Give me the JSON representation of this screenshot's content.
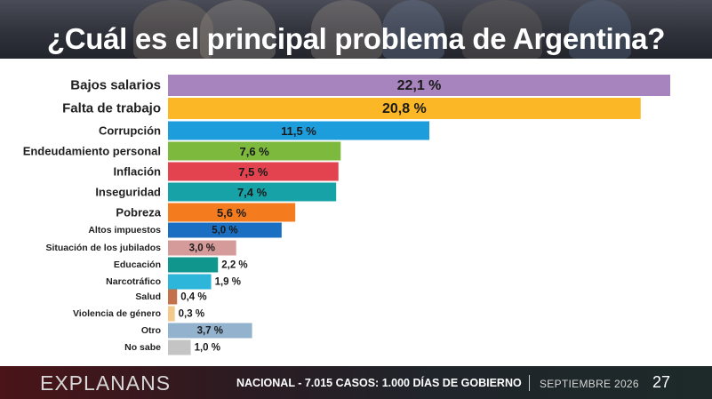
{
  "header": {
    "title": "¿Cuál es el principal problema de Argentina?"
  },
  "footer": {
    "brand": "EXPLANANS",
    "note_prefix": "NACIONAL - 7.015 CASOS: ",
    "note_bold": "1.000 DÍAS DE GOBIERNO",
    "date": "SEPTIEMBRE 2026",
    "page": "27"
  },
  "chart_data": {
    "type": "bar",
    "orientation": "horizontal",
    "categories": [
      "Bajos salarios",
      "Falta de trabajo",
      "Corrupción",
      "Endeudamiento personal",
      "Inflación",
      "Inseguridad",
      "Pobreza",
      "Altos impuestos",
      "Situación de los jubilados",
      "Educación",
      "Narcotráfico",
      "Salud",
      "Violencia de género",
      "Otro",
      "No sabe"
    ],
    "values": [
      22.1,
      20.8,
      11.5,
      7.6,
      7.5,
      7.4,
      5.6,
      5.0,
      3.0,
      2.2,
      1.9,
      0.4,
      0.3,
      3.7,
      1.0
    ],
    "value_labels": [
      "22,1 %",
      "20,8 %",
      "11,5 %",
      "7,6 %",
      "7,5 %",
      "7,4 %",
      "5,6 %",
      "5,0 %",
      "3,0 %",
      "2,2 %",
      "1,9 %",
      "0,4 %",
      "0,3 %",
      "3,7 %",
      "1,0 %"
    ],
    "colors": [
      "#a784bd",
      "#fbb725",
      "#1d9ddb",
      "#7cb93c",
      "#e2434f",
      "#17a2a8",
      "#f47c1e",
      "#1b6fc2",
      "#d59b9a",
      "#10968c",
      "#2db6d9",
      "#c3714a",
      "#f3c98c",
      "#93b2cd",
      "#c4c4c4"
    ],
    "xlim": [
      0,
      22.1
    ],
    "grid": false,
    "legend": "none"
  }
}
